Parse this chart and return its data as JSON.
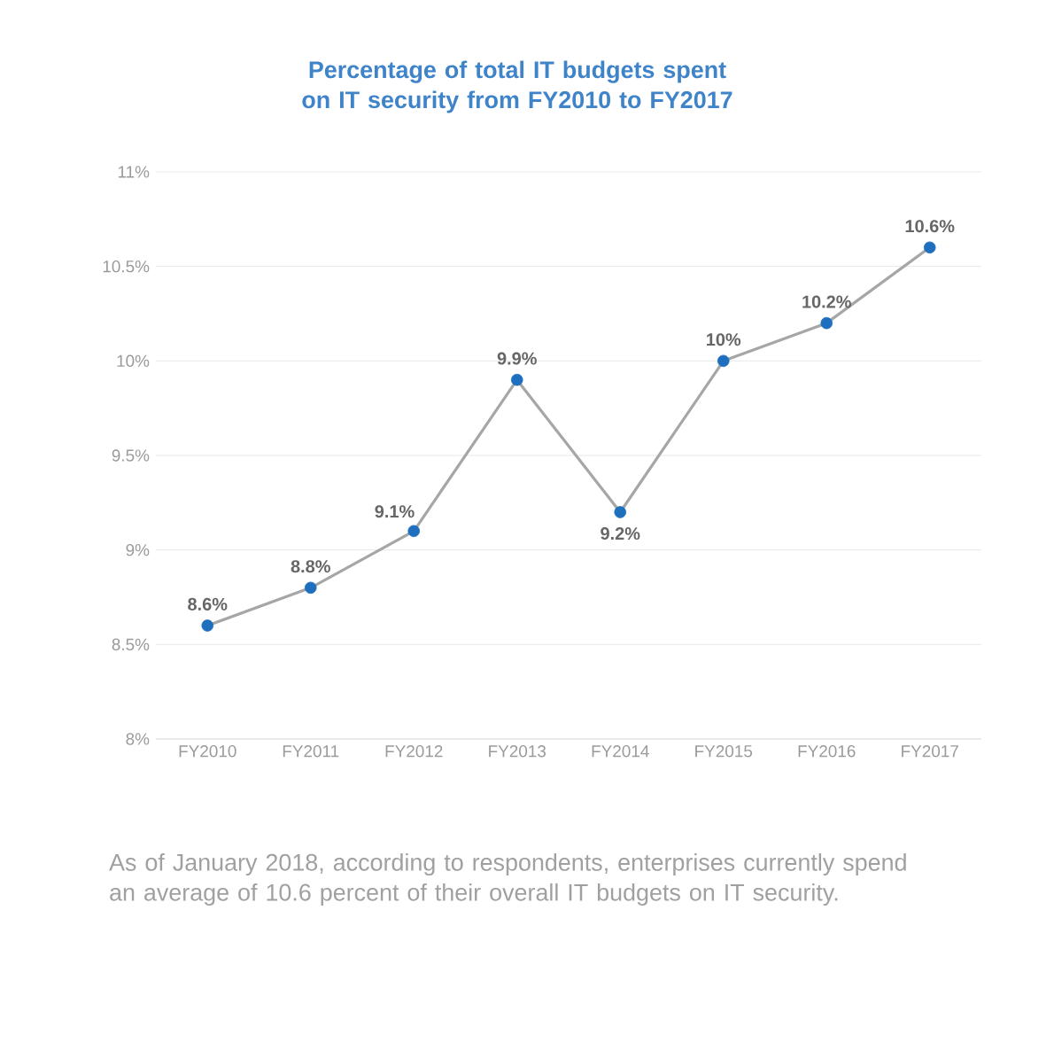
{
  "chart_data": {
    "type": "line",
    "title": "Percentage of total IT budgets spent on IT security from FY2010 to FY2017",
    "categories": [
      "FY2010",
      "FY2011",
      "FY2012",
      "FY2013",
      "FY2014",
      "FY2015",
      "FY2016",
      "FY2017"
    ],
    "values": [
      8.6,
      8.8,
      9.1,
      9.9,
      9.2,
      10,
      10.2,
      10.6
    ],
    "value_labels": [
      "8.6%",
      "8.8%",
      "9.1%",
      "9.9%",
      "9.2%",
      "10%",
      "10.2%",
      "10.6%"
    ],
    "color": "#a6a6a6",
    "colors": [
      "#1f6fbf",
      "#1f6fbf",
      "#1f6fbf",
      "#1f6fbf",
      "#1f6fbf",
      "#1f6fbf",
      "#1f6fbf",
      "#1f6fbf"
    ],
    "marker": "circle",
    "ylim": [
      8,
      11
    ],
    "yticks": [
      {
        "value": 8,
        "label": "8%"
      },
      {
        "value": 8.5,
        "label": "8.5%"
      },
      {
        "value": 9,
        "label": "9%"
      },
      {
        "value": 9.5,
        "label": "9.5%"
      },
      {
        "value": 10,
        "label": "10%"
      },
      {
        "value": 10.5,
        "label": "10.5%"
      },
      {
        "value": 11,
        "label": "11%"
      }
    ],
    "grid": "y",
    "annotations": [
      "As of January 2018, according to respondents, enterprises currently spend an average of 10.6 percent of their overall IT budgets on IT security."
    ]
  }
}
